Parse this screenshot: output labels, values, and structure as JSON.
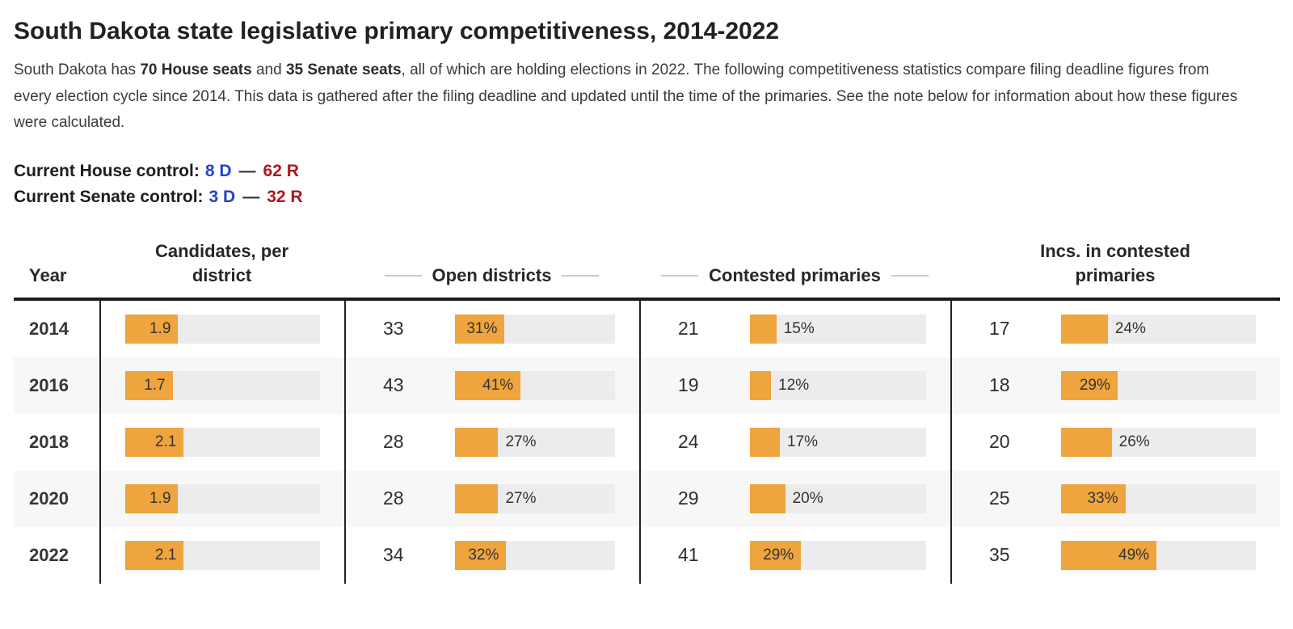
{
  "title": "South Dakota state legislative primary competitiveness, 2014-2022",
  "intro": {
    "pre": "South Dakota has ",
    "bold1": "70 House seats",
    "mid": " and ",
    "bold2": "35 Senate seats",
    "post": ", all of which are holding elections in 2022. The following competitiveness statistics compare filing deadline figures from every election cycle since 2014. This data is gathered after the filing deadline and updated until the time of the primaries. See the note below for information about how these figures were calculated."
  },
  "control": {
    "house_label": "Current House control:",
    "house_d": "8 D",
    "separator": "—",
    "house_r": "62 R",
    "senate_label": "Current Senate control:",
    "senate_d": "3 D",
    "senate_r": "32 R"
  },
  "colors": {
    "bar_orange": "#efa43d",
    "bar_track": "#ececec",
    "row_stripe": "#f7f7f7",
    "dem_blue": "#2343c8",
    "rep_red": "#b0161c",
    "border_dark": "#222222"
  },
  "table": {
    "headers": [
      "Year",
      "Candidates, per district",
      "Open districts",
      "Contested primaries",
      "Incs. in contested primaries"
    ],
    "candidates_scale_max": 7,
    "rows": [
      {
        "year": "2014",
        "candidates": {
          "value": 1.9,
          "label": "1.9"
        },
        "open": {
          "count": "33",
          "pct": 31,
          "label": "31%"
        },
        "contested": {
          "count": "21",
          "pct": 15,
          "label": "15%"
        },
        "incs": {
          "count": "17",
          "pct": 24,
          "label": "24%"
        }
      },
      {
        "year": "2016",
        "candidates": {
          "value": 1.7,
          "label": "1.7"
        },
        "open": {
          "count": "43",
          "pct": 41,
          "label": "41%"
        },
        "contested": {
          "count": "19",
          "pct": 12,
          "label": "12%"
        },
        "incs": {
          "count": "18",
          "pct": 29,
          "label": "29%"
        }
      },
      {
        "year": "2018",
        "candidates": {
          "value": 2.1,
          "label": "2.1"
        },
        "open": {
          "count": "28",
          "pct": 27,
          "label": "27%"
        },
        "contested": {
          "count": "24",
          "pct": 17,
          "label": "17%"
        },
        "incs": {
          "count": "20",
          "pct": 26,
          "label": "26%"
        }
      },
      {
        "year": "2020",
        "candidates": {
          "value": 1.9,
          "label": "1.9"
        },
        "open": {
          "count": "28",
          "pct": 27,
          "label": "27%"
        },
        "contested": {
          "count": "29",
          "pct": 20,
          "label": "20%"
        },
        "incs": {
          "count": "25",
          "pct": 33,
          "label": "33%"
        }
      },
      {
        "year": "2022",
        "candidates": {
          "value": 2.1,
          "label": "2.1"
        },
        "open": {
          "count": "34",
          "pct": 32,
          "label": "32%"
        },
        "contested": {
          "count": "41",
          "pct": 29,
          "label": "29%"
        },
        "incs": {
          "count": "35",
          "pct": 49,
          "label": "49%"
        }
      }
    ]
  },
  "chart_data": {
    "type": "table",
    "title": "South Dakota state legislative primary competitiveness, 2014-2022",
    "categories": [
      "2014",
      "2016",
      "2018",
      "2020",
      "2022"
    ],
    "series": [
      {
        "name": "Candidates, per district",
        "values": [
          1.9,
          1.7,
          2.1,
          1.9,
          2.1
        ]
      },
      {
        "name": "Open districts (count)",
        "values": [
          33,
          43,
          28,
          28,
          34
        ]
      },
      {
        "name": "Open districts (%)",
        "values": [
          31,
          41,
          27,
          27,
          32
        ]
      },
      {
        "name": "Contested primaries (count)",
        "values": [
          21,
          19,
          24,
          29,
          41
        ]
      },
      {
        "name": "Contested primaries (%)",
        "values": [
          15,
          12,
          17,
          20,
          29
        ]
      },
      {
        "name": "Incs. in contested primaries (count)",
        "values": [
          17,
          18,
          20,
          25,
          35
        ]
      },
      {
        "name": "Incs. in contested primaries (%)",
        "values": [
          24,
          29,
          26,
          33,
          49
        ]
      }
    ],
    "bar_color": "#efa43d",
    "legend_position": "none",
    "grid": false
  }
}
